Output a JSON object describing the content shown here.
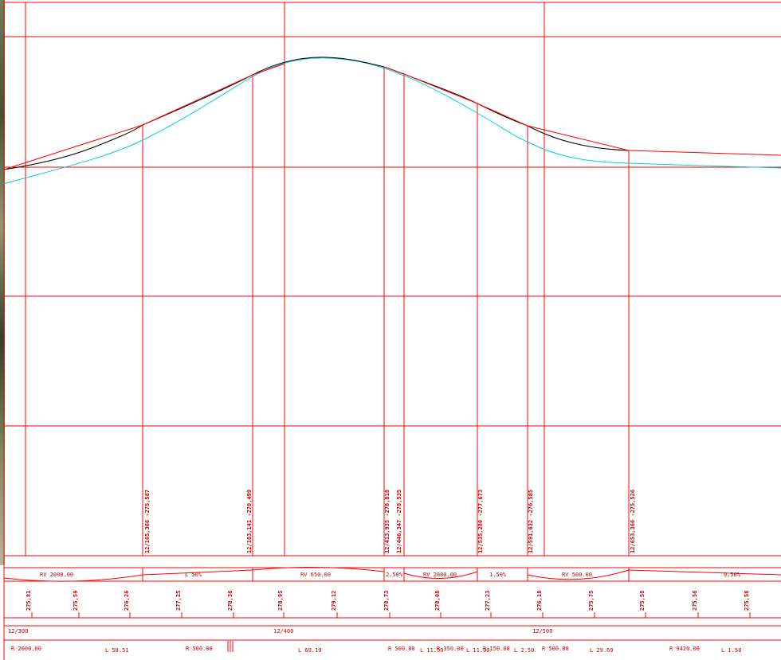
{
  "colors": {
    "grid": "#ff0000",
    "design_line": "#ff0000",
    "ground_black": "#000000",
    "ground_cyan": "#00d2d2",
    "text": "#cc0000"
  },
  "profile": {
    "vertical_labels": [
      "12/165,366 -275,587",
      "12/183,141 -278,499",
      "12/413,935 -278,818",
      "12/446,347 -278,535",
      "12/535,280 -277,673",
      "12/591,632 -276,585",
      "12/653,366 -275,526"
    ],
    "curve_labels": [
      "RV 2000.00",
      "L 50%",
      "RV 650.00",
      "2.50%",
      "RV 2000.00",
      "1.50%",
      "RV 500.00",
      "0.50%"
    ],
    "elevations": [
      "275,81",
      "275,59",
      "276,26",
      "277,25",
      "278,36",
      "278,95",
      "279,12",
      "278,73",
      "278,08",
      "277,23",
      "276,18",
      "275,75",
      "275,58",
      "275,56",
      "275,58"
    ],
    "stations": [
      "12/300",
      "12/400",
      "12/500"
    ],
    "horizontal_elements": [
      "R 2000.00",
      "L 58.51",
      "R 500.00",
      "L 69.19",
      "R 500.00",
      "L 11.50",
      "R 350.00",
      "L 11.00",
      "R 150.00",
      "L 2.50",
      "R 500.00",
      "L 29.69",
      "R 9420.00",
      "L 1.58"
    ]
  }
}
